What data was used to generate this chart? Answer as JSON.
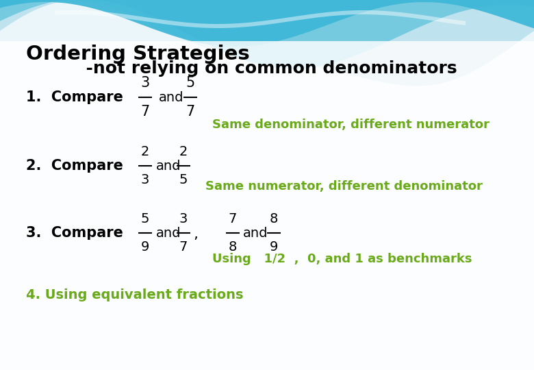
{
  "title_line1": "Ordering Strategies",
  "title_line2": "          -not relying on common denominators",
  "item1_label": "1.  Compare",
  "item1_fraction1_num": "3",
  "item1_fraction1_den": "7",
  "item1_and": "and",
  "item1_fraction2_num": "5",
  "item1_fraction2_den": "7",
  "item1_desc": "Same denominator, different numerator",
  "item2_label": "2.  Compare",
  "item2_fraction1_num": "2",
  "item2_fraction1_den": "3",
  "item2_and": "and",
  "item2_fraction2_num": "2",
  "item2_fraction2_den": "5",
  "item2_desc": "Same numerator, different denominator",
  "item3_label": "3.  Compare",
  "item3_fraction1_num": "5",
  "item3_fraction1_den": "9",
  "item3_and1": "and",
  "item3_fraction2_num": "3",
  "item3_fraction2_den": "7",
  "item3_comma": ",",
  "item3_fraction3_num": "7",
  "item3_fraction3_den": "8",
  "item3_and2": "and",
  "item3_fraction4_num": "8",
  "item3_fraction4_den": "9",
  "item3_desc": "Using   1/2  ,  0, and 1 as benchmarks",
  "item4_label": "4. Using equivalent fractions",
  "title_color": "#000000",
  "body_color": "#000000",
  "green_color": "#6aaa1a",
  "wave_color1": "#b8e0ec",
  "wave_color2": "#6ec8de",
  "wave_color3": "#40b8d8",
  "bg_top": "#d0eef6",
  "bg_bottom": "#eaf6fa"
}
